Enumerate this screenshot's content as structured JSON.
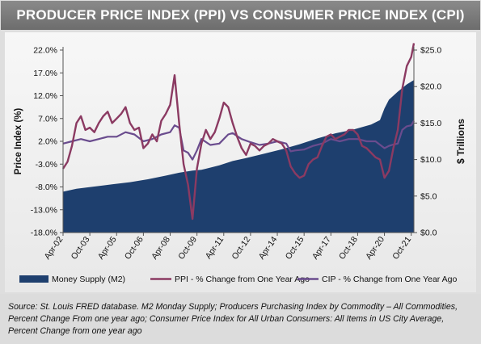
{
  "title": "PRODUCER PRICE INDEX (PPI) VS CONSUMER PRICE INDEX (CPI)",
  "source_note": "Source: St. Louis FRED database. M2 Monday Supply; Producers Purchasing Index by Commodity – All Commodities, Percent Change From one year ago; Consumer Price Index for All Urban Consumers: All Items in US City Average, Percent Change from one year ago",
  "colors": {
    "money_supply": "#1e3f6e",
    "ppi": "#8b3a62",
    "cpi": "#6a4c8e",
    "panel": "#eeeeee",
    "title_bar": "#7a7a7a"
  },
  "chart_data": {
    "type": "area",
    "title": "",
    "ylabel_left": "Price Index (%)",
    "ylabel_right": "$ Trillions",
    "left_axis": {
      "range": [
        -18,
        22
      ],
      "ticks": [
        22,
        17,
        12,
        7,
        2,
        -3,
        -8,
        -13,
        -18
      ],
      "tick_labels": [
        "22.0%",
        "17.0%",
        "12.0%",
        "7.0%",
        "2.0%",
        "-3.0%",
        "-8.0%",
        "-13.0%",
        "-18.0%"
      ]
    },
    "right_axis": {
      "range": [
        0,
        25
      ],
      "ticks": [
        25,
        20,
        15,
        10,
        5,
        0
      ],
      "tick_labels": [
        "$25.0",
        "$20.0",
        "$15.0",
        "$10.0",
        "$5.0",
        "$0.0"
      ]
    },
    "x_axis": {
      "range": [
        2002.25,
        2021.9
      ],
      "ticks": [
        2002.25,
        2003.75,
        2005.25,
        2006.75,
        2008.25,
        2009.75,
        2011.25,
        2012.75,
        2014.25,
        2015.75,
        2017.25,
        2018.75,
        2020.25,
        2021.75
      ],
      "tick_labels": [
        "Apr-02",
        "Oct-03",
        "Apr-05",
        "Oct-06",
        "Apr-08",
        "Oct-09",
        "Apr-11",
        "Oct-12",
        "Apr-14",
        "Oct-15",
        "Apr-17",
        "Oct-18",
        "Apr-20",
        "Oct-21"
      ]
    },
    "legend_position": "bottom",
    "grid": false,
    "series": [
      {
        "name": "Money Supply (M2)",
        "type": "area",
        "axis": "right",
        "x": [
          2002.25,
          2003.0,
          2004.0,
          2005.0,
          2006.0,
          2007.0,
          2008.0,
          2008.75,
          2009.5,
          2010.0,
          2011.0,
          2011.75,
          2012.5,
          2013.5,
          2014.5,
          2015.5,
          2016.5,
          2017.5,
          2018.5,
          2019.5,
          2020.0,
          2020.25,
          2020.5,
          2021.0,
          2021.5,
          2021.9
        ],
        "values": [
          5.6,
          6.0,
          6.3,
          6.6,
          6.9,
          7.3,
          7.8,
          8.2,
          8.5,
          8.6,
          9.2,
          9.8,
          10.2,
          10.8,
          11.4,
          12.1,
          12.9,
          13.6,
          14.1,
          14.8,
          15.4,
          17.0,
          18.2,
          19.3,
          20.3,
          20.9
        ]
      },
      {
        "name": "PPI - % Change from One Year Ago",
        "type": "line",
        "axis": "left",
        "x": [
          2002.25,
          2002.5,
          2002.75,
          2003.0,
          2003.25,
          2003.5,
          2003.75,
          2004.0,
          2004.25,
          2004.5,
          2004.75,
          2005.0,
          2005.25,
          2005.5,
          2005.75,
          2006.0,
          2006.25,
          2006.5,
          2006.75,
          2007.0,
          2007.25,
          2007.5,
          2007.75,
          2008.0,
          2008.25,
          2008.5,
          2008.75,
          2009.0,
          2009.25,
          2009.5,
          2009.75,
          2010.0,
          2010.25,
          2010.5,
          2010.75,
          2011.0,
          2011.25,
          2011.5,
          2011.75,
          2012.0,
          2012.25,
          2012.5,
          2012.75,
          2013.0,
          2013.25,
          2013.5,
          2013.75,
          2014.0,
          2014.25,
          2014.5,
          2014.75,
          2015.0,
          2015.25,
          2015.5,
          2015.75,
          2016.0,
          2016.25,
          2016.5,
          2016.75,
          2017.0,
          2017.25,
          2017.5,
          2017.75,
          2018.0,
          2018.25,
          2018.5,
          2018.75,
          2019.0,
          2019.25,
          2019.5,
          2019.75,
          2020.0,
          2020.25,
          2020.5,
          2020.75,
          2021.0,
          2021.25,
          2021.5,
          2021.75,
          2021.9
        ],
        "values": [
          -4.0,
          -2.5,
          1.0,
          6.0,
          7.5,
          4.5,
          5.0,
          4.0,
          6.0,
          7.5,
          8.5,
          6.0,
          7.0,
          8.0,
          9.5,
          6.0,
          4.5,
          5.0,
          0.5,
          1.5,
          3.5,
          2.0,
          6.5,
          8.0,
          10.0,
          16.5,
          6.0,
          -3.0,
          -7.5,
          -15.0,
          -4.0,
          1.5,
          4.5,
          2.5,
          4.0,
          7.0,
          10.5,
          9.5,
          6.0,
          3.0,
          0.5,
          -1.0,
          1.5,
          1.0,
          0.0,
          1.0,
          1.5,
          2.5,
          2.0,
          1.5,
          0.0,
          -3.5,
          -5.0,
          -6.0,
          -5.5,
          -3.0,
          -2.0,
          -1.5,
          1.0,
          3.0,
          3.5,
          2.5,
          3.0,
          3.5,
          4.5,
          4.5,
          3.5,
          1.0,
          0.5,
          -0.5,
          -1.5,
          -2.0,
          -6.0,
          -4.5,
          0.5,
          4.5,
          13.5,
          18.5,
          20.5,
          23.5
        ]
      },
      {
        "name": "CIP - % Change from One Year Ago",
        "type": "line",
        "axis": "left",
        "x": [
          2002.25,
          2002.75,
          2003.25,
          2003.75,
          2004.25,
          2004.75,
          2005.25,
          2005.75,
          2006.25,
          2006.75,
          2007.25,
          2007.75,
          2008.25,
          2008.5,
          2008.75,
          2009.0,
          2009.25,
          2009.5,
          2009.75,
          2010.0,
          2010.5,
          2011.0,
          2011.5,
          2011.75,
          2012.25,
          2012.75,
          2013.25,
          2013.75,
          2014.25,
          2014.75,
          2015.0,
          2015.25,
          2015.75,
          2016.25,
          2016.75,
          2017.25,
          2017.75,
          2018.25,
          2018.75,
          2019.25,
          2019.75,
          2020.25,
          2020.5,
          2020.75,
          2021.0,
          2021.25,
          2021.5,
          2021.75,
          2021.9
        ],
        "values": [
          1.5,
          2.0,
          2.5,
          2.0,
          2.5,
          3.0,
          3.0,
          4.0,
          3.5,
          2.0,
          2.5,
          3.5,
          4.0,
          5.5,
          5.0,
          0.0,
          -0.5,
          -2.0,
          0.0,
          2.5,
          1.2,
          1.5,
          3.5,
          3.8,
          2.5,
          1.8,
          1.2,
          1.5,
          2.0,
          1.5,
          -0.2,
          0.0,
          0.2,
          1.0,
          1.5,
          2.5,
          2.0,
          2.5,
          2.5,
          2.0,
          2.0,
          0.5,
          1.0,
          1.3,
          1.5,
          4.5,
          5.3,
          5.5,
          6.5
        ]
      }
    ]
  }
}
